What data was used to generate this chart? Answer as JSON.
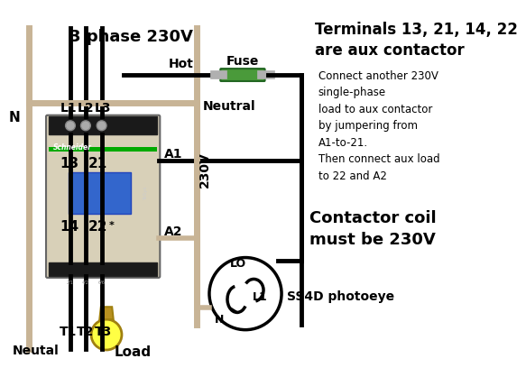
{
  "bg_color": "#ffffff",
  "title_3phase": "3 phase 230V",
  "title_terminals": "Terminals 13, 21, 14, 22\nare aux contactor",
  "note_right": "Connect another 230V\nsingle-phase\nload to aux contactor\nby jumpering from\nA1-to-21.\nThen connect aux load\nto 22 and A2",
  "note_coil": "Contactor coil\nmust be 230V",
  "label_N": "N",
  "label_L1": "L1",
  "label_L2": "L2",
  "label_L3": "L3",
  "label_T1": "T1",
  "label_T2": "T2",
  "label_T3": "T3",
  "label_A1": "A1",
  "label_A2": "A2",
  "label_13": "13",
  "label_21": "21",
  "label_14": "14",
  "label_22": "22",
  "label_neutral": "Neutral",
  "label_hot": "Hot",
  "label_fuse": "Fuse",
  "label_230V": "230V",
  "label_load": "Load",
  "label_neutal_bot": "Neutal",
  "label_photoeye": "SS4D photoeye",
  "label_LO": "LO",
  "label_L1_pe": "L1",
  "label_N_pe": "N",
  "wire_color_black": "#000000",
  "wire_color_tan": "#c8b496",
  "contactor_fill": "#d8d0b8",
  "contactor_stroke": "#888888",
  "fuse_green": "#4a9a3a",
  "fuse_silver": "#c8c8c8",
  "bulb_color": "#ffff44",
  "bulb_stroke": "#a08010"
}
